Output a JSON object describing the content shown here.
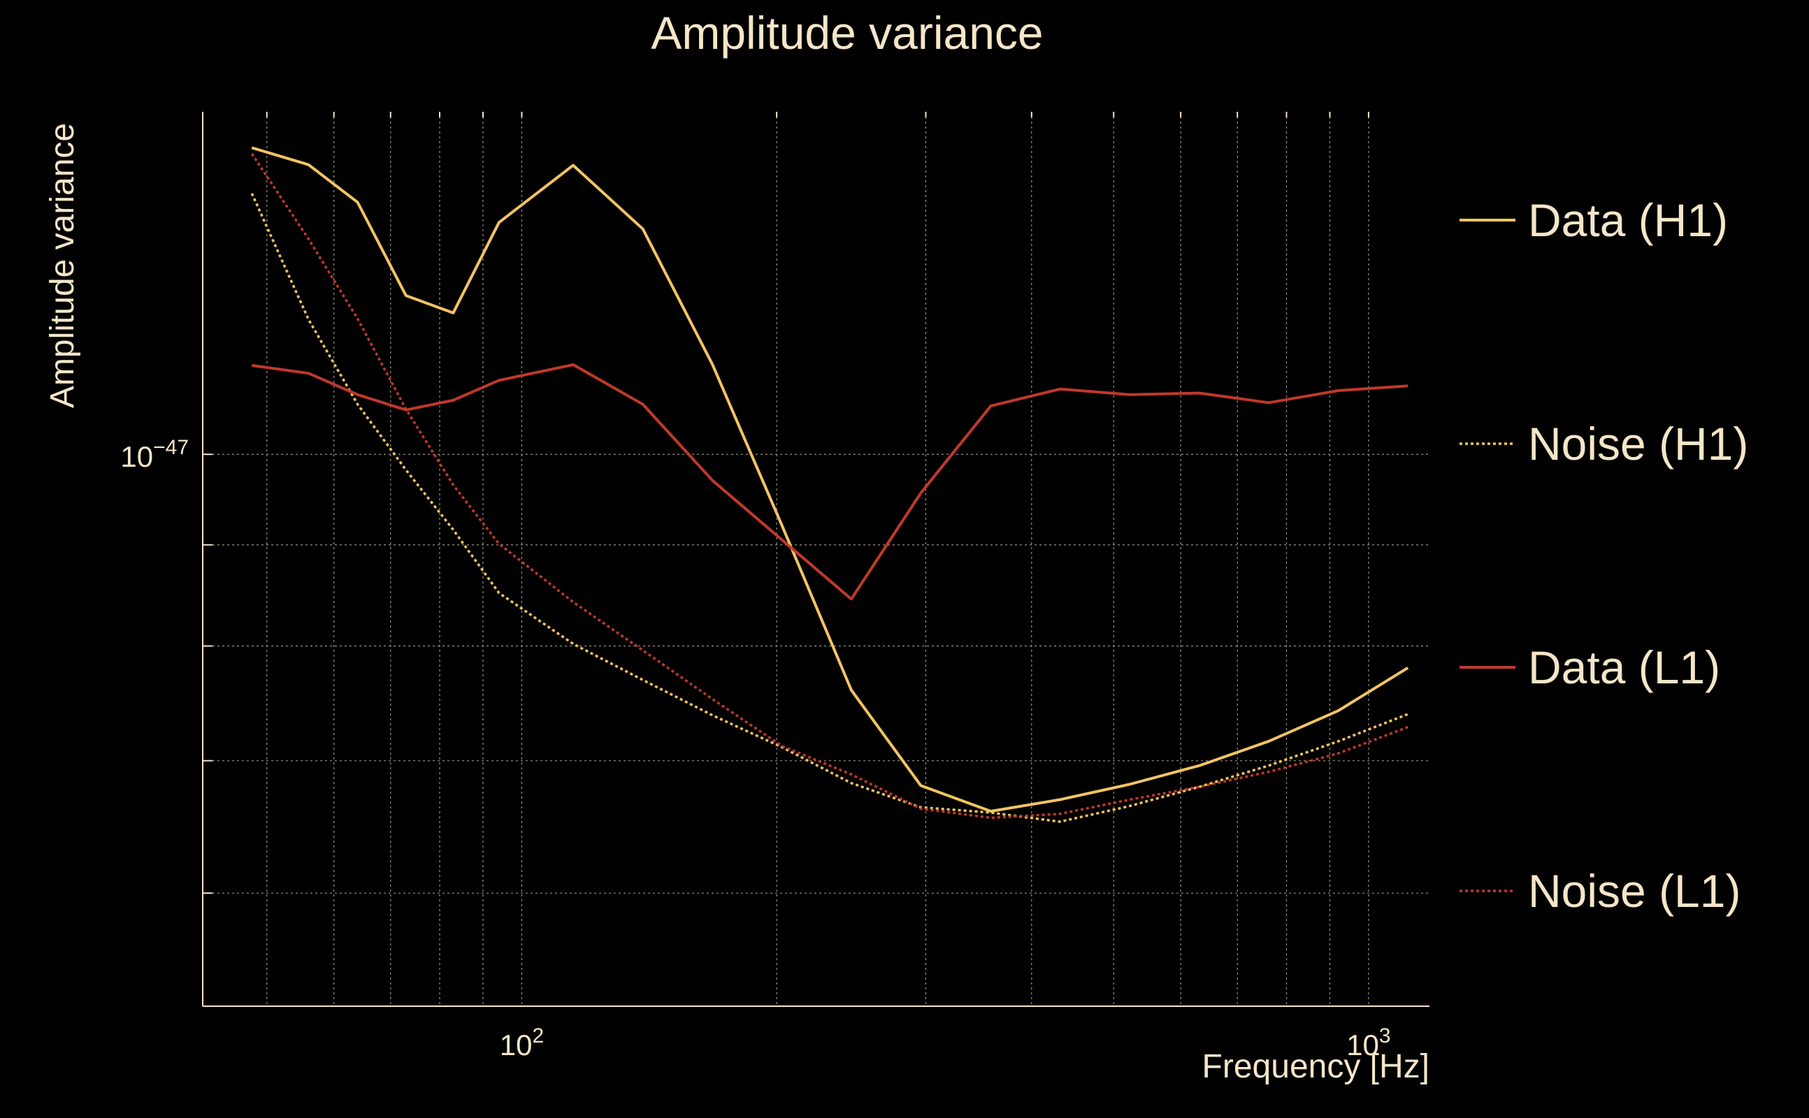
{
  "chart_data": {
    "type": "line",
    "title": "Amplitude variance",
    "xlabel": "Frequency [Hz]",
    "ylabel": "Amplitude variance",
    "xscale": "log",
    "yscale": "log",
    "xlim": [
      42,
      1180
    ],
    "ylim": [
      5.26e-48,
      1.49e-47
    ],
    "grid": true,
    "legend_position": "right",
    "x_ticks": [
      {
        "value": 100,
        "base": "10",
        "exp": "2"
      },
      {
        "value": 1000,
        "base": "10",
        "exp": "3"
      }
    ],
    "y_ticks": [
      {
        "value": 1e-47,
        "base": "10",
        "exp": "−47"
      }
    ],
    "x": [
      48,
      56,
      64,
      73,
      83,
      94,
      115,
      139,
      168,
      203,
      245,
      296,
      358,
      432,
      522,
      631,
      762,
      921,
      1113
    ],
    "series": [
      {
        "name": "Data (H1)",
        "color": "#f2c463",
        "dash": "solid",
        "values": [
          1.429e-47,
          1.401e-47,
          1.341e-47,
          1.203e-47,
          1.179e-47,
          1.31e-47,
          1.4e-47,
          1.3e-47,
          1.11e-47,
          9.2e-48,
          7.6e-48,
          6.8e-48,
          6.6e-48,
          6.69e-48,
          6.81e-48,
          6.96e-48,
          7.16e-48,
          7.42e-48,
          7.8e-48
        ]
      },
      {
        "name": "Noise (H1)",
        "color": "#f2c463",
        "dash": "dotted",
        "values": [
          1.355e-47,
          1.17e-47,
          1.06e-47,
          9.82e-48,
          9.16e-48,
          8.51e-48,
          8.02e-48,
          7.69e-48,
          7.38e-48,
          7.11e-48,
          6.82e-48,
          6.63e-48,
          6.59e-48,
          6.52e-48,
          6.64e-48,
          6.79e-48,
          6.96e-48,
          7.16e-48,
          7.39e-48
        ]
      },
      {
        "name": "Data (L1)",
        "color": "#c0392b",
        "dash": "solid",
        "values": [
          1.109e-47,
          1.099e-47,
          1.072e-47,
          1.053e-47,
          1.065e-47,
          1.09e-47,
          1.11e-47,
          1.06e-47,
          9.7e-48,
          9.05e-48,
          8.45e-48,
          9.56e-48,
          1.058e-47,
          1.079e-47,
          1.072e-47,
          1.074e-47,
          1.062e-47,
          1.077e-47,
          1.083e-47
        ]
      },
      {
        "name": "Noise (L1)",
        "color": "#c0392b",
        "dash": "dotted",
        "values": [
          1.419e-47,
          1.285e-47,
          1.171e-47,
          1.054e-47,
          9.65e-48,
          9.01e-48,
          8.42e-48,
          7.96e-48,
          7.52e-48,
          7.12e-48,
          6.89e-48,
          6.62e-48,
          6.55e-48,
          6.58e-48,
          6.69e-48,
          6.79e-48,
          6.91e-48,
          7.06e-48,
          7.28e-48
        ]
      }
    ]
  }
}
